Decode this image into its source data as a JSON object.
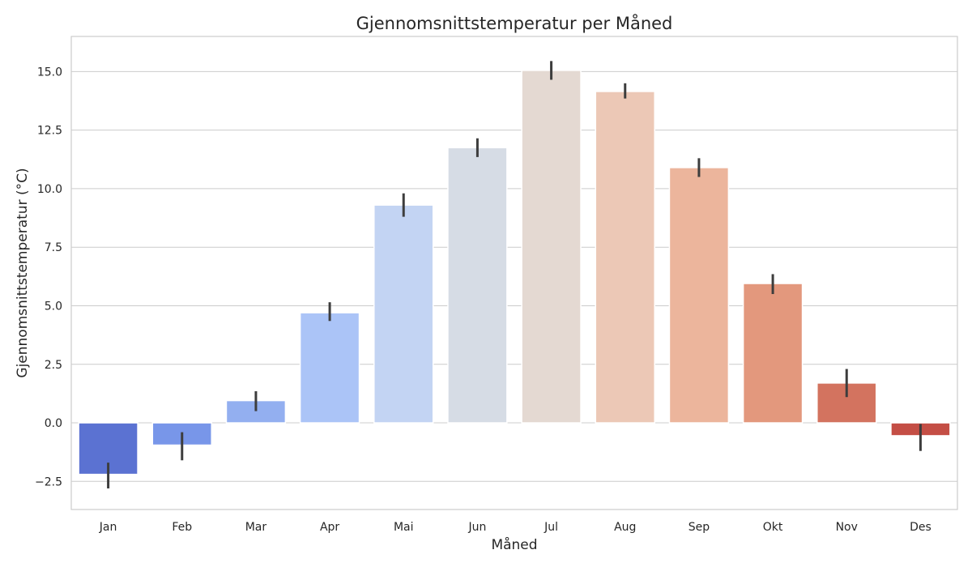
{
  "chart_data": {
    "type": "bar",
    "title": "Gjennomsnittstemperatur per Måned",
    "xlabel": "Måned",
    "ylabel": "Gjennomsnittstemperatur (°C)",
    "ylim": [
      -3.7,
      16.5
    ],
    "yticks": [
      -2.5,
      0.0,
      2.5,
      5.0,
      7.5,
      10.0,
      12.5,
      15.0
    ],
    "ytick_labels": [
      "−2.5",
      "0.0",
      "2.5",
      "5.0",
      "7.5",
      "10.0",
      "12.5",
      "15.0"
    ],
    "grid": "horizontal",
    "categories": [
      "Jan",
      "Feb",
      "Mar",
      "Apr",
      "Mai",
      "Jun",
      "Jul",
      "Aug",
      "Sep",
      "Okt",
      "Nov",
      "Des"
    ],
    "values": [
      -2.2,
      -0.95,
      0.95,
      4.7,
      9.3,
      11.75,
      15.05,
      14.15,
      10.9,
      5.95,
      1.7,
      -0.55
    ],
    "error_low": [
      -2.8,
      -1.6,
      0.5,
      4.35,
      8.8,
      11.35,
      14.65,
      13.85,
      10.5,
      5.5,
      1.1,
      -1.2
    ],
    "error_high": [
      -1.7,
      -0.4,
      1.35,
      5.15,
      9.8,
      12.15,
      15.45,
      14.5,
      11.3,
      6.35,
      2.3,
      -0.05
    ],
    "colors": [
      "#5b72d2",
      "#7896e9",
      "#93aff0",
      "#abc4f7",
      "#c3d4f3",
      "#d6dce5",
      "#e4d9d2",
      "#ecc8b6",
      "#ecb59c",
      "#e3987d",
      "#d3735f",
      "#c44e45"
    ]
  }
}
